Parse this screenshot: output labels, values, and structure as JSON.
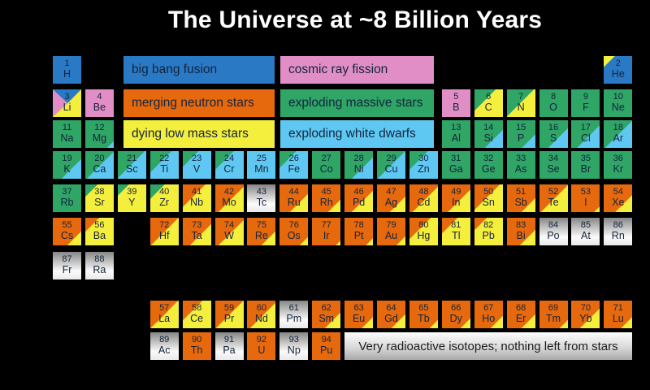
{
  "title": "The Universe at ~8 Billion Years",
  "radioactive_note": "Very radioactive isotopes; nothing left from stars",
  "colors": {
    "big_bang": "#2a79c4",
    "cosmic_ray": "#e18dc6",
    "neutron_stars": "#e6690d",
    "massive_stars": "#2fa566",
    "low_mass": "#f4ee3c",
    "white_dwarfs": "#5ec8f2",
    "radioactive_top": "#868686",
    "radioactive_bottom": "#fbfbfb"
  },
  "legend": {
    "items": [
      {
        "label": "big bang fusion",
        "color": "#2a79c4",
        "side": "left",
        "row": 0
      },
      {
        "label": "cosmic ray fission",
        "color": "#e18dc6",
        "side": "right",
        "row": 0
      },
      {
        "label": "merging neutron stars",
        "color": "#e6690d",
        "side": "left",
        "row": 1
      },
      {
        "label": "exploding massive stars",
        "color": "#2fa566",
        "side": "right",
        "row": 1
      },
      {
        "label": "dying low mass stars",
        "color": "#f4ee3c",
        "side": "left",
        "row": 2
      },
      {
        "label": "exploding white dwarfs",
        "color": "#5ec8f2",
        "side": "right",
        "row": 2
      }
    ]
  },
  "elements": [
    {
      "n": 1,
      "sym": "H",
      "col": 1,
      "row": 1,
      "fill": {
        "type": "solid",
        "a": "big_bang"
      }
    },
    {
      "n": 2,
      "sym": "He",
      "col": 18,
      "row": 1,
      "fill": {
        "type": "split",
        "a": "low_mass",
        "b": "big_bang",
        "f": 20
      }
    },
    {
      "n": 3,
      "sym": "Li",
      "col": 1,
      "row": 2,
      "fill": {
        "type": "tri",
        "top": "big_bang",
        "left": "cosmic_ray",
        "base": "low_mass"
      }
    },
    {
      "n": 4,
      "sym": "Be",
      "col": 2,
      "row": 2,
      "fill": {
        "type": "solid",
        "a": "cosmic_ray"
      }
    },
    {
      "n": 5,
      "sym": "B",
      "col": 13,
      "row": 2,
      "fill": {
        "type": "solid",
        "a": "cosmic_ray"
      }
    },
    {
      "n": 6,
      "sym": "C",
      "col": 14,
      "row": 2,
      "fill": {
        "type": "split",
        "a": "massive_stars",
        "b": "low_mass",
        "f": 38
      }
    },
    {
      "n": 7,
      "sym": "N",
      "col": 15,
      "row": 2,
      "fill": {
        "type": "split",
        "a": "massive_stars",
        "b": "low_mass",
        "f": 48
      }
    },
    {
      "n": 8,
      "sym": "O",
      "col": 16,
      "row": 2,
      "fill": {
        "type": "solid",
        "a": "massive_stars"
      }
    },
    {
      "n": 9,
      "sym": "F",
      "col": 17,
      "row": 2,
      "fill": {
        "type": "solid",
        "a": "massive_stars"
      }
    },
    {
      "n": 10,
      "sym": "Ne",
      "col": 18,
      "row": 2,
      "fill": {
        "type": "solid",
        "a": "massive_stars"
      }
    },
    {
      "n": 11,
      "sym": "Na",
      "col": 1,
      "row": 3,
      "fill": {
        "type": "solid",
        "a": "massive_stars"
      }
    },
    {
      "n": 12,
      "sym": "Mg",
      "col": 2,
      "row": 3,
      "fill": {
        "type": "split",
        "a": "massive_stars",
        "b": "white_dwarfs",
        "f": 88
      }
    },
    {
      "n": 13,
      "sym": "Al",
      "col": 13,
      "row": 3,
      "fill": {
        "type": "solid",
        "a": "massive_stars"
      }
    },
    {
      "n": 14,
      "sym": "Si",
      "col": 14,
      "row": 3,
      "fill": {
        "type": "split",
        "a": "massive_stars",
        "b": "white_dwarfs",
        "f": 68
      }
    },
    {
      "n": 15,
      "sym": "P",
      "col": 15,
      "row": 3,
      "fill": {
        "type": "split",
        "a": "massive_stars",
        "b": "white_dwarfs",
        "f": 76
      }
    },
    {
      "n": 16,
      "sym": "S",
      "col": 16,
      "row": 3,
      "fill": {
        "type": "split",
        "a": "massive_stars",
        "b": "white_dwarfs",
        "f": 65
      }
    },
    {
      "n": 17,
      "sym": "Cl",
      "col": 17,
      "row": 3,
      "fill": {
        "type": "split",
        "a": "massive_stars",
        "b": "white_dwarfs",
        "f": 60
      }
    },
    {
      "n": 18,
      "sym": "Ar",
      "col": 18,
      "row": 3,
      "fill": {
        "type": "split",
        "a": "massive_stars",
        "b": "white_dwarfs",
        "f": 52
      }
    },
    {
      "n": 19,
      "sym": "K",
      "col": 1,
      "row": 4,
      "fill": {
        "type": "split",
        "a": "massive_stars",
        "b": "white_dwarfs",
        "f": 65
      }
    },
    {
      "n": 20,
      "sym": "Ca",
      "col": 2,
      "row": 4,
      "fill": {
        "type": "split",
        "a": "massive_stars",
        "b": "white_dwarfs",
        "f": 52
      }
    },
    {
      "n": 21,
      "sym": "Sc",
      "col": 3,
      "row": 4,
      "fill": {
        "type": "split",
        "a": "massive_stars",
        "b": "white_dwarfs",
        "f": 48
      }
    },
    {
      "n": 22,
      "sym": "Ti",
      "col": 4,
      "row": 4,
      "fill": {
        "type": "split",
        "a": "massive_stars",
        "b": "white_dwarfs",
        "f": 38
      }
    },
    {
      "n": 23,
      "sym": "V",
      "col": 5,
      "row": 4,
      "fill": {
        "type": "split",
        "a": "massive_stars",
        "b": "white_dwarfs",
        "f": 28
      }
    },
    {
      "n": 24,
      "sym": "Cr",
      "col": 6,
      "row": 4,
      "fill": {
        "type": "split",
        "a": "massive_stars",
        "b": "white_dwarfs",
        "f": 33
      }
    },
    {
      "n": 25,
      "sym": "Mn",
      "col": 7,
      "row": 4,
      "fill": {
        "type": "solid",
        "a": "white_dwarfs"
      }
    },
    {
      "n": 26,
      "sym": "Fe",
      "col": 8,
      "row": 4,
      "fill": {
        "type": "split",
        "a": "massive_stars",
        "b": "white_dwarfs",
        "f": 30
      }
    },
    {
      "n": 27,
      "sym": "Co",
      "col": 9,
      "row": 4,
      "fill": {
        "type": "solid",
        "a": "massive_stars"
      }
    },
    {
      "n": 28,
      "sym": "Ni",
      "col": 10,
      "row": 4,
      "fill": {
        "type": "split",
        "a": "massive_stars",
        "b": "white_dwarfs",
        "f": 62
      }
    },
    {
      "n": 29,
      "sym": "Cu",
      "col": 11,
      "row": 4,
      "fill": {
        "type": "split",
        "a": "massive_stars",
        "b": "white_dwarfs",
        "f": 50
      }
    },
    {
      "n": 30,
      "sym": "Zn",
      "col": 12,
      "row": 4,
      "fill": {
        "type": "split",
        "a": "massive_stars",
        "b": "white_dwarfs",
        "f": 33
      }
    },
    {
      "n": 31,
      "sym": "Ga",
      "col": 13,
      "row": 4,
      "fill": {
        "type": "solid",
        "a": "massive_stars"
      }
    },
    {
      "n": 32,
      "sym": "Ge",
      "col": 14,
      "row": 4,
      "fill": {
        "type": "solid",
        "a": "massive_stars"
      }
    },
    {
      "n": 33,
      "sym": "As",
      "col": 15,
      "row": 4,
      "fill": {
        "type": "solid",
        "a": "massive_stars"
      }
    },
    {
      "n": 34,
      "sym": "Se",
      "col": 16,
      "row": 4,
      "fill": {
        "type": "solid",
        "a": "massive_stars"
      }
    },
    {
      "n": 35,
      "sym": "Br",
      "col": 17,
      "row": 4,
      "fill": {
        "type": "solid",
        "a": "massive_stars"
      }
    },
    {
      "n": 36,
      "sym": "Kr",
      "col": 18,
      "row": 4,
      "fill": {
        "type": "solid",
        "a": "massive_stars"
      }
    },
    {
      "n": 37,
      "sym": "Rb",
      "col": 1,
      "row": 5,
      "fill": {
        "type": "solid",
        "a": "massive_stars"
      }
    },
    {
      "n": 38,
      "sym": "Sr",
      "col": 2,
      "row": 5,
      "fill": {
        "type": "split",
        "a": "massive_stars",
        "b": "low_mass",
        "f": 22
      }
    },
    {
      "n": 39,
      "sym": "Y",
      "col": 3,
      "row": 5,
      "fill": {
        "type": "split",
        "a": "massive_stars",
        "b": "low_mass",
        "f": 20
      }
    },
    {
      "n": 40,
      "sym": "Zr",
      "col": 4,
      "row": 5,
      "fill": {
        "type": "split",
        "a": "massive_stars",
        "b": "low_mass",
        "f": 26
      }
    },
    {
      "n": 41,
      "sym": "Nb",
      "col": 5,
      "row": 5,
      "fill": {
        "type": "split",
        "a": "neutron_stars",
        "b": "low_mass",
        "f": 40
      }
    },
    {
      "n": 42,
      "sym": "Mo",
      "col": 6,
      "row": 5,
      "fill": {
        "type": "split",
        "a": "neutron_stars",
        "b": "low_mass",
        "f": 55
      }
    },
    {
      "n": 43,
      "sym": "Tc",
      "col": 7,
      "row": 5,
      "fill": {
        "type": "radio"
      }
    },
    {
      "n": 44,
      "sym": "Ru",
      "col": 8,
      "row": 5,
      "fill": {
        "type": "split",
        "a": "neutron_stars",
        "b": "low_mass",
        "f": 68
      }
    },
    {
      "n": 45,
      "sym": "Rh",
      "col": 9,
      "row": 5,
      "fill": {
        "type": "split",
        "a": "neutron_stars",
        "b": "low_mass",
        "f": 78
      }
    },
    {
      "n": 46,
      "sym": "Pd",
      "col": 10,
      "row": 5,
      "fill": {
        "type": "split",
        "a": "neutron_stars",
        "b": "low_mass",
        "f": 62
      }
    },
    {
      "n": 47,
      "sym": "Ag",
      "col": 11,
      "row": 5,
      "fill": {
        "type": "split",
        "a": "neutron_stars",
        "b": "low_mass",
        "f": 72
      }
    },
    {
      "n": 48,
      "sym": "Cd",
      "col": 12,
      "row": 5,
      "fill": {
        "type": "split",
        "a": "neutron_stars",
        "b": "low_mass",
        "f": 55
      }
    },
    {
      "n": 49,
      "sym": "In",
      "col": 13,
      "row": 5,
      "fill": {
        "type": "split",
        "a": "neutron_stars",
        "b": "low_mass",
        "f": 60
      }
    },
    {
      "n": 50,
      "sym": "Sn",
      "col": 14,
      "row": 5,
      "fill": {
        "type": "split",
        "a": "neutron_stars",
        "b": "low_mass",
        "f": 45
      }
    },
    {
      "n": 51,
      "sym": "Sb",
      "col": 15,
      "row": 5,
      "fill": {
        "type": "split",
        "a": "neutron_stars",
        "b": "low_mass",
        "f": 75
      }
    },
    {
      "n": 52,
      "sym": "Te",
      "col": 16,
      "row": 5,
      "fill": {
        "type": "split",
        "a": "neutron_stars",
        "b": "low_mass",
        "f": 52
      }
    },
    {
      "n": 53,
      "sym": "I",
      "col": 17,
      "row": 5,
      "fill": {
        "type": "split",
        "a": "neutron_stars",
        "b": "low_mass",
        "f": 90
      }
    },
    {
      "n": 54,
      "sym": "Xe",
      "col": 18,
      "row": 5,
      "fill": {
        "type": "split",
        "a": "neutron_stars",
        "b": "low_mass",
        "f": 70
      }
    },
    {
      "n": 55,
      "sym": "Cs",
      "col": 1,
      "row": 6,
      "fill": {
        "type": "split",
        "a": "neutron_stars",
        "b": "low_mass",
        "f": 75
      }
    },
    {
      "n": 56,
      "sym": "Ba",
      "col": 2,
      "row": 6,
      "fill": {
        "type": "split",
        "a": "neutron_stars",
        "b": "low_mass",
        "f": 25
      }
    },
    {
      "n": 72,
      "sym": "Hf",
      "col": 4,
      "row": 6,
      "fill": {
        "type": "split",
        "a": "neutron_stars",
        "b": "low_mass",
        "f": 50
      }
    },
    {
      "n": 73,
      "sym": "Ta",
      "col": 5,
      "row": 6,
      "fill": {
        "type": "split",
        "a": "neutron_stars",
        "b": "low_mass",
        "f": 62
      }
    },
    {
      "n": 74,
      "sym": "W",
      "col": 6,
      "row": 6,
      "fill": {
        "type": "split",
        "a": "neutron_stars",
        "b": "low_mass",
        "f": 55
      }
    },
    {
      "n": 75,
      "sym": "Re",
      "col": 7,
      "row": 6,
      "fill": {
        "type": "split",
        "a": "neutron_stars",
        "b": "low_mass",
        "f": 75
      }
    },
    {
      "n": 76,
      "sym": "Os",
      "col": 8,
      "row": 6,
      "fill": {
        "type": "split",
        "a": "neutron_stars",
        "b": "low_mass",
        "f": 85
      }
    },
    {
      "n": 77,
      "sym": "Ir",
      "col": 9,
      "row": 6,
      "fill": {
        "type": "split",
        "a": "neutron_stars",
        "b": "low_mass",
        "f": 92
      }
    },
    {
      "n": 78,
      "sym": "Pt",
      "col": 10,
      "row": 6,
      "fill": {
        "type": "split",
        "a": "neutron_stars",
        "b": "low_mass",
        "f": 87
      }
    },
    {
      "n": 79,
      "sym": "Au",
      "col": 11,
      "row": 6,
      "fill": {
        "type": "split",
        "a": "neutron_stars",
        "b": "low_mass",
        "f": 84
      }
    },
    {
      "n": 80,
      "sym": "Hg",
      "col": 12,
      "row": 6,
      "fill": {
        "type": "split",
        "a": "neutron_stars",
        "b": "low_mass",
        "f": 38
      }
    },
    {
      "n": 81,
      "sym": "Tl",
      "col": 13,
      "row": 6,
      "fill": {
        "type": "split",
        "a": "neutron_stars",
        "b": "low_mass",
        "f": 28
      }
    },
    {
      "n": 82,
      "sym": "Pb",
      "col": 14,
      "row": 6,
      "fill": {
        "type": "split",
        "a": "neutron_stars",
        "b": "low_mass",
        "f": 22
      }
    },
    {
      "n": 83,
      "sym": "Bi",
      "col": 15,
      "row": 6,
      "fill": {
        "type": "split",
        "a": "neutron_stars",
        "b": "low_mass",
        "f": 72
      }
    },
    {
      "n": 84,
      "sym": "Po",
      "col": 16,
      "row": 6,
      "fill": {
        "type": "radio"
      }
    },
    {
      "n": 85,
      "sym": "At",
      "col": 17,
      "row": 6,
      "fill": {
        "type": "radio"
      }
    },
    {
      "n": 86,
      "sym": "Rn",
      "col": 18,
      "row": 6,
      "fill": {
        "type": "radio"
      }
    },
    {
      "n": 87,
      "sym": "Fr",
      "col": 1,
      "row": 7,
      "fill": {
        "type": "radio"
      }
    },
    {
      "n": 88,
      "sym": "Ra",
      "col": 2,
      "row": 7,
      "fill": {
        "type": "radio"
      }
    },
    {
      "n": 57,
      "sym": "La",
      "col": 4,
      "row": 8,
      "fill": {
        "type": "split",
        "a": "neutron_stars",
        "b": "low_mass",
        "f": 50
      }
    },
    {
      "n": 58,
      "sym": "Ce",
      "col": 5,
      "row": 8,
      "fill": {
        "type": "split",
        "a": "neutron_stars",
        "b": "low_mass",
        "f": 35
      }
    },
    {
      "n": 59,
      "sym": "Pr",
      "col": 6,
      "row": 8,
      "fill": {
        "type": "split",
        "a": "neutron_stars",
        "b": "low_mass",
        "f": 50
      }
    },
    {
      "n": 60,
      "sym": "Nd",
      "col": 7,
      "row": 8,
      "fill": {
        "type": "split",
        "a": "neutron_stars",
        "b": "low_mass",
        "f": 55
      }
    },
    {
      "n": 61,
      "sym": "Pm",
      "col": 8,
      "row": 8,
      "fill": {
        "type": "radio"
      }
    },
    {
      "n": 62,
      "sym": "Sm",
      "col": 9,
      "row": 8,
      "fill": {
        "type": "split",
        "a": "neutron_stars",
        "b": "low_mass",
        "f": 72
      }
    },
    {
      "n": 63,
      "sym": "Eu",
      "col": 10,
      "row": 8,
      "fill": {
        "type": "split",
        "a": "neutron_stars",
        "b": "low_mass",
        "f": 80
      }
    },
    {
      "n": 64,
      "sym": "Gd",
      "col": 11,
      "row": 8,
      "fill": {
        "type": "split",
        "a": "neutron_stars",
        "b": "low_mass",
        "f": 75
      }
    },
    {
      "n": 65,
      "sym": "Tb",
      "col": 12,
      "row": 8,
      "fill": {
        "type": "split",
        "a": "neutron_stars",
        "b": "low_mass",
        "f": 85
      }
    },
    {
      "n": 66,
      "sym": "Dy",
      "col": 13,
      "row": 8,
      "fill": {
        "type": "split",
        "a": "neutron_stars",
        "b": "low_mass",
        "f": 82
      }
    },
    {
      "n": 67,
      "sym": "Ho",
      "col": 14,
      "row": 8,
      "fill": {
        "type": "split",
        "a": "neutron_stars",
        "b": "low_mass",
        "f": 78
      }
    },
    {
      "n": 68,
      "sym": "Er",
      "col": 15,
      "row": 8,
      "fill": {
        "type": "split",
        "a": "neutron_stars",
        "b": "low_mass",
        "f": 75
      }
    },
    {
      "n": 69,
      "sym": "Tm",
      "col": 16,
      "row": 8,
      "fill": {
        "type": "split",
        "a": "neutron_stars",
        "b": "low_mass",
        "f": 85
      }
    },
    {
      "n": 70,
      "sym": "Yb",
      "col": 17,
      "row": 8,
      "fill": {
        "type": "split",
        "a": "neutron_stars",
        "b": "low_mass",
        "f": 65
      }
    },
    {
      "n": 71,
      "sym": "Lu",
      "col": 18,
      "row": 8,
      "fill": {
        "type": "split",
        "a": "neutron_stars",
        "b": "low_mass",
        "f": 80
      }
    },
    {
      "n": 89,
      "sym": "Ac",
      "col": 4,
      "row": 9,
      "fill": {
        "type": "radio"
      }
    },
    {
      "n": 90,
      "sym": "Th",
      "col": 5,
      "row": 9,
      "fill": {
        "type": "solid",
        "a": "neutron_stars"
      }
    },
    {
      "n": 91,
      "sym": "Pa",
      "col": 6,
      "row": 9,
      "fill": {
        "type": "radio"
      }
    },
    {
      "n": 92,
      "sym": "U",
      "col": 7,
      "row": 9,
      "fill": {
        "type": "solid",
        "a": "neutron_stars"
      }
    },
    {
      "n": 93,
      "sym": "Np",
      "col": 8,
      "row": 9,
      "fill": {
        "type": "radio"
      }
    },
    {
      "n": 94,
      "sym": "Pu",
      "col": 9,
      "row": 9,
      "fill": {
        "type": "solid",
        "a": "neutron_stars"
      }
    }
  ]
}
